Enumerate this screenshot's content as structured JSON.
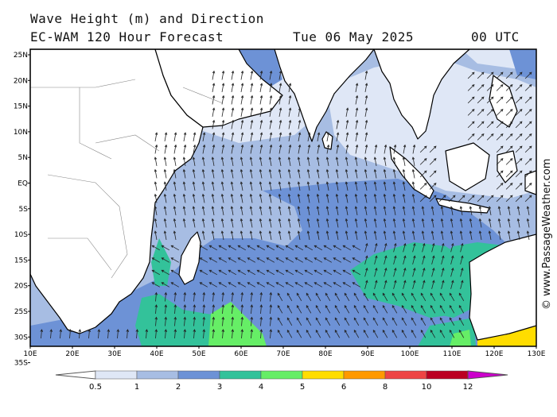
{
  "title": {
    "line1": "Wave Height (m) and Direction",
    "line2": "EC-WAM 120 Hour Forecast",
    "date": "Tue 06 May 2025",
    "time": "00 UTC"
  },
  "credit": "© www.PassageWeather.com",
  "map": {
    "lat_labels": [
      "25N",
      "20N",
      "15N",
      "10N",
      "5N",
      "EQ",
      "5S",
      "10S",
      "15S",
      "20S",
      "25S",
      "30S",
      "35S"
    ],
    "lon_labels": [
      "10E",
      "20E",
      "30E",
      "40E",
      "50E",
      "60E",
      "70E",
      "80E",
      "90E",
      "100E",
      "110E",
      "120E",
      "130E"
    ],
    "lon_range": [
      10,
      130
    ],
    "lat_range": [
      -36,
      26
    ]
  },
  "legend": {
    "labels": [
      "0.5",
      "1",
      "2",
      "3",
      "4",
      "5",
      "6",
      "8",
      "10",
      "12"
    ],
    "colors": [
      "#dfe7f6",
      "#a7bde3",
      "#6d92d6",
      "#33c29a",
      "#66ee66",
      "#ffdd00",
      "#ff9900",
      "#ee4444",
      "#bb0022",
      "#cc00cc"
    ]
  },
  "colors": {
    "land": "#ffffff",
    "coast": "#000000",
    "wave_0.5_1": "#dfe7f6",
    "wave_1_2": "#a7bde3",
    "wave_2_3": "#6d92d6",
    "wave_3_4": "#33c29a",
    "wave_4_5": "#66ee66",
    "wave_5_6": "#ffdd00"
  }
}
